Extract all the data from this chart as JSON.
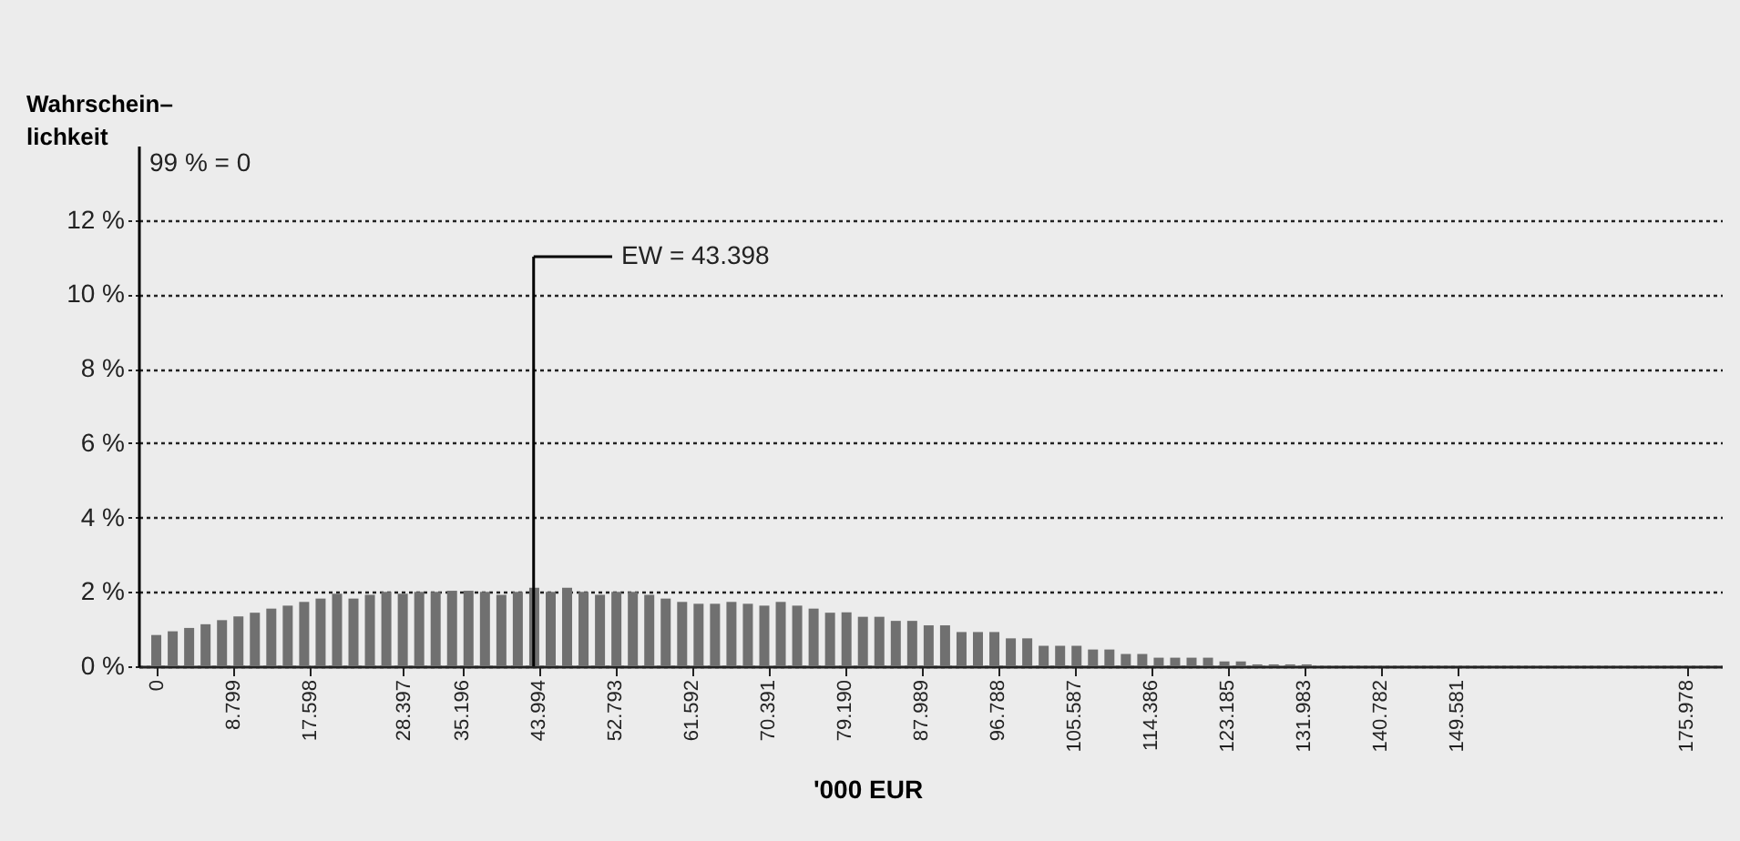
{
  "chart_data": {
    "type": "bar",
    "ylabel": "Wahrschein–\nlichkeit",
    "xlabel": "'000 EUR",
    "x": [
      0,
      1.89,
      3.78,
      5.67,
      7.56,
      9.45,
      11.34,
      13.23,
      15.12,
      17.01,
      18.9,
      20.79,
      22.68,
      24.57,
      26.46,
      28.35,
      30.24,
      32.13,
      34.02,
      35.91,
      37.8,
      39.69,
      41.58,
      43.47,
      45.36,
      47.25,
      49.14,
      51.03,
      52.92,
      54.81,
      56.7,
      58.59,
      60.48,
      62.37,
      64.26,
      66.15,
      68.04,
      69.93,
      71.82,
      73.71,
      75.6,
      77.49,
      79.38,
      81.27,
      83.16,
      85.05,
      86.94,
      88.83,
      90.72,
      92.61,
      94.5,
      96.39,
      98.28,
      100.17,
      102.06,
      103.95,
      105.84,
      107.73,
      109.62,
      111.51,
      113.4,
      115.29,
      117.18,
      119.07,
      120.96,
      122.85,
      124.74,
      126.63,
      128.52,
      130.41,
      132.3
    ],
    "series": [
      {
        "color": "#707070",
        "values": [
          0.84,
          0.94,
          1.03,
          1.13,
          1.24,
          1.34,
          1.44,
          1.55,
          1.63,
          1.73,
          1.82,
          1.95,
          1.82,
          1.92,
          2.0,
          1.95,
          2.0,
          2.0,
          2.03,
          2.03,
          2.0,
          1.92,
          2.0,
          2.11,
          2.0,
          2.11,
          2.0,
          1.92,
          2.0,
          2.0,
          1.92,
          1.82,
          1.73,
          1.68,
          1.68,
          1.73,
          1.68,
          1.63,
          1.73,
          1.63,
          1.55,
          1.44,
          1.45,
          1.33,
          1.33,
          1.22,
          1.22,
          1.1,
          1.1,
          0.92,
          0.92,
          0.92,
          0.75,
          0.75,
          0.55,
          0.55,
          0.55,
          0.45,
          0.45,
          0.33,
          0.33,
          0.23,
          0.23,
          0.23,
          0.23,
          0.13,
          0.13,
          0.05,
          0.05,
          0.05,
          0.05
        ]
      }
    ],
    "xlim": [
      -1,
      179
    ],
    "xticks": [
      0,
      8.799,
      17.598,
      28.397,
      35.196,
      43.994,
      52.793,
      61.592,
      70.391,
      {
        "value": 79.19,
        "label": "79.190"
      },
      87.989,
      96.788,
      105.587,
      114.386,
      123.185,
      131.983,
      140.782,
      149.581,
      175.978
    ],
    "ylim": [
      0,
      14
    ],
    "yticks": [
      {
        "value": 0,
        "label": "0 %"
      },
      {
        "value": 2,
        "label": "2 %"
      },
      {
        "value": 4,
        "label": "4 %"
      },
      {
        "value": 6,
        "label": "6 %"
      },
      {
        "value": 8,
        "label": "8 %"
      },
      {
        "value": 10,
        "label": "10 %"
      },
      {
        "value": 12,
        "label": "12 %"
      }
    ],
    "grid": "y",
    "legend": false,
    "ref_lines": [
      {
        "axis": "x",
        "value": 43.398,
        "label": "EW = 43.398"
      }
    ],
    "annotations": [
      "99 % = 0"
    ]
  }
}
